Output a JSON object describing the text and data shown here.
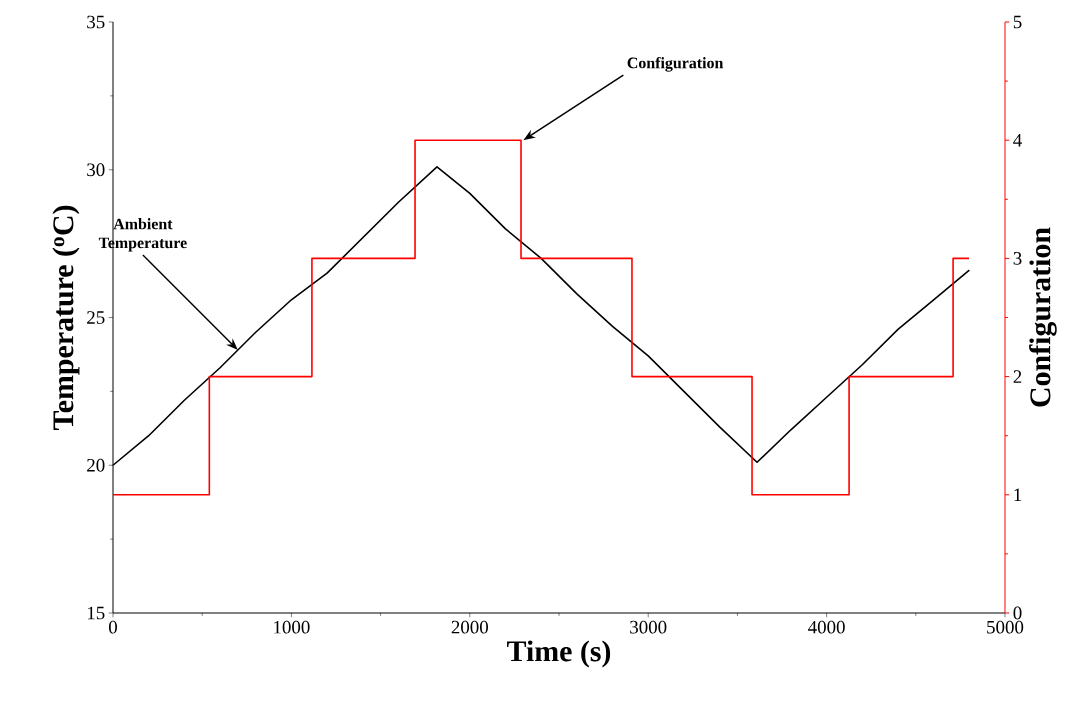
{
  "chart_data": {
    "type": "line",
    "xlabel": "Time (s)",
    "ylabel": "Temperature ($^{o}$C)",
    "y2label": "Configuration",
    "xlim": [
      0,
      5000
    ],
    "xticks": [
      0,
      1000,
      2000,
      3000,
      4000,
      5000
    ],
    "ylim": [
      15,
      35
    ],
    "yticks": [
      15,
      20,
      25,
      30,
      35
    ],
    "y2lim": [
      0,
      5
    ],
    "y2ticks": [
      0,
      1,
      2,
      3,
      4,
      5
    ],
    "series": [
      {
        "color": "#000000",
        "x": [
          0,
          200,
          400,
          600,
          800,
          1000,
          1200,
          1400,
          1600,
          1816,
          2000,
          2200,
          2400,
          2600,
          2800,
          3000,
          3200,
          3400,
          3610,
          3800,
          4000,
          4200,
          4400,
          4600,
          4800
        ],
        "values": [
          20.0,
          21.0,
          22.2,
          23.3,
          24.5,
          25.6,
          26.5,
          27.7,
          28.9,
          30.1,
          29.2,
          28.0,
          27.0,
          25.8,
          24.7,
          23.7,
          22.5,
          21.3,
          20.1,
          21.2,
          22.3,
          23.4,
          24.6,
          25.6,
          26.6
        ]
      },
      {
        "type": "step",
        "axis": "y2",
        "color": "#ff0000",
        "x": [
          0,
          540,
          1115,
          1693,
          2287,
          2909,
          3582,
          4126,
          4709,
          4798
        ],
        "values": [
          1,
          2,
          3,
          4,
          3,
          2,
          1,
          2,
          3,
          3
        ]
      }
    ],
    "annotations": [
      {
        "text": "Ambient Temperature",
        "x": 700,
        "y": 23.9
      },
      {
        "text": "Configuration",
        "x": 2300,
        "y": 31
      }
    ]
  }
}
